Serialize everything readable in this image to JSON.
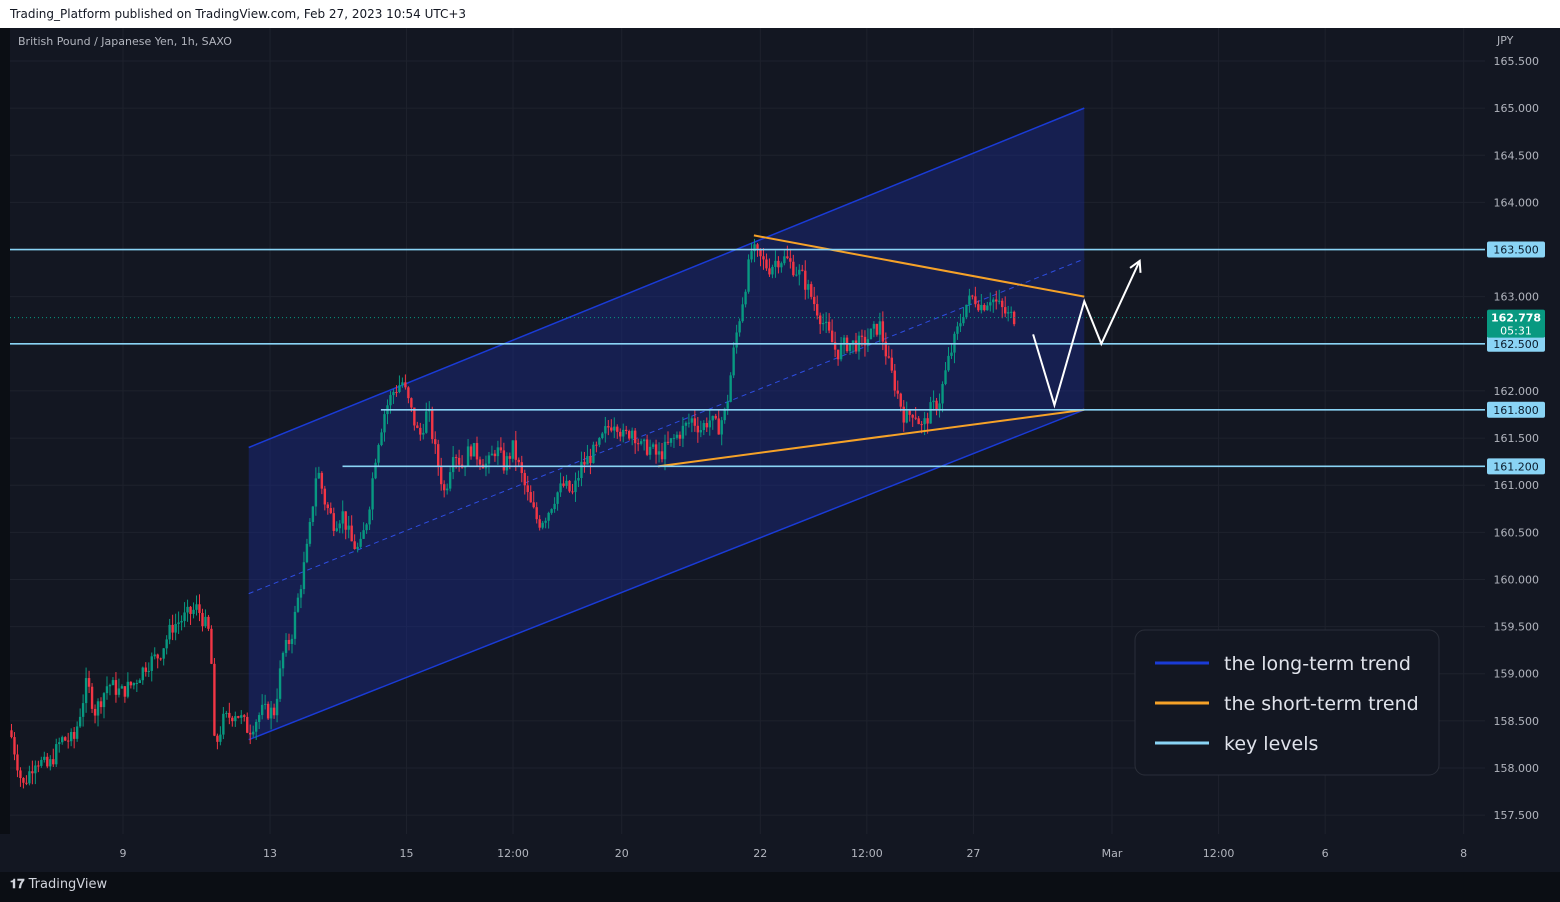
{
  "header": {
    "text": "Trading_Platform published on TradingView.com, Feb 27, 2023 10:54 UTC+3"
  },
  "footer": {
    "brand": "TradingView"
  },
  "chart_data": {
    "type": "candlestick",
    "symbol_label": "British Pound / Japanese Yen, 1h, SAXO",
    "currency_label": "JPY",
    "ylim": [
      157.3,
      165.85
    ],
    "y_ticks": [
      "165.500",
      "165.000",
      "164.500",
      "164.000",
      "163.000",
      "162.000",
      "161.500",
      "161.000",
      "160.500",
      "160.000",
      "159.500",
      "159.000",
      "158.500",
      "158.000",
      "157.500"
    ],
    "x_ticks": [
      {
        "label": "9",
        "t": 26.5
      },
      {
        "label": "13",
        "t": 61.0
      },
      {
        "label": "15",
        "t": 93.0
      },
      {
        "label": "12:00",
        "t": 118.0
      },
      {
        "label": "20",
        "t": 143.5
      },
      {
        "label": "22",
        "t": 176.0
      },
      {
        "label": "12:00",
        "t": 201.0
      },
      {
        "label": "27",
        "t": 226.0
      },
      {
        "label": "Mar",
        "t": 258.5
      },
      {
        "label": "12:00",
        "t": 283.5
      },
      {
        "label": "6",
        "t": 308.5
      },
      {
        "label": "8",
        "t": 341.0
      }
    ],
    "price_path": [
      [
        0,
        158.4
      ],
      [
        3,
        157.8
      ],
      [
        6,
        158.1
      ],
      [
        9,
        158.0
      ],
      [
        12,
        158.3
      ],
      [
        15,
        158.3
      ],
      [
        18,
        158.9
      ],
      [
        20,
        158.6
      ],
      [
        23,
        158.9
      ],
      [
        26,
        158.8
      ],
      [
        29,
        158.9
      ],
      [
        32,
        159.1
      ],
      [
        35,
        159.2
      ],
      [
        38,
        159.5
      ],
      [
        41,
        159.6
      ],
      [
        44,
        159.7
      ],
      [
        47,
        159.4
      ],
      [
        48,
        158.2
      ],
      [
        50,
        158.5
      ],
      [
        53,
        158.6
      ],
      [
        56,
        158.4
      ],
      [
        59,
        158.6
      ],
      [
        62,
        158.6
      ],
      [
        64,
        159.2
      ],
      [
        66,
        159.4
      ],
      [
        68,
        159.9
      ],
      [
        70,
        160.4
      ],
      [
        72,
        161.2
      ],
      [
        74,
        160.8
      ],
      [
        76,
        160.6
      ],
      [
        78,
        160.7
      ],
      [
        80,
        160.4
      ],
      [
        82,
        160.3
      ],
      [
        84,
        160.7
      ],
      [
        86,
        161.4
      ],
      [
        88,
        161.8
      ],
      [
        90,
        162.0
      ],
      [
        92,
        162.1
      ],
      [
        94,
        161.8
      ],
      [
        96,
        161.5
      ],
      [
        98,
        161.8
      ],
      [
        100,
        161.3
      ],
      [
        102,
        160.9
      ],
      [
        104,
        161.4
      ],
      [
        106,
        161.2
      ],
      [
        108,
        161.4
      ],
      [
        110,
        161.3
      ],
      [
        112,
        161.2
      ],
      [
        114,
        161.4
      ],
      [
        116,
        161.2
      ],
      [
        118,
        161.4
      ],
      [
        120,
        161.1
      ],
      [
        122,
        160.8
      ],
      [
        124,
        160.6
      ],
      [
        126,
        160.7
      ],
      [
        128,
        160.9
      ],
      [
        130,
        161.0
      ],
      [
        132,
        160.9
      ],
      [
        134,
        161.2
      ],
      [
        136,
        161.3
      ],
      [
        138,
        161.4
      ],
      [
        140,
        161.6
      ],
      [
        142,
        161.7
      ],
      [
        144,
        161.5
      ],
      [
        146,
        161.6
      ],
      [
        148,
        161.4
      ],
      [
        150,
        161.4
      ],
      [
        152,
        161.3
      ],
      [
        154,
        161.4
      ],
      [
        156,
        161.5
      ],
      [
        158,
        161.6
      ],
      [
        160,
        161.7
      ],
      [
        162,
        161.6
      ],
      [
        164,
        161.7
      ],
      [
        166,
        161.6
      ],
      [
        168,
        161.8
      ],
      [
        170,
        162.5
      ],
      [
        172,
        163.0
      ],
      [
        174,
        163.5
      ],
      [
        176,
        163.4
      ],
      [
        178,
        163.3
      ],
      [
        180,
        163.4
      ],
      [
        182,
        163.4
      ],
      [
        184,
        163.3
      ],
      [
        186,
        163.2
      ],
      [
        188,
        163.0
      ],
      [
        190,
        162.8
      ],
      [
        192,
        162.6
      ],
      [
        194,
        162.4
      ],
      [
        196,
        162.5
      ],
      [
        198,
        162.5
      ],
      [
        200,
        162.5
      ],
      [
        202,
        162.6
      ],
      [
        204,
        162.7
      ],
      [
        206,
        162.3
      ],
      [
        208,
        162.0
      ],
      [
        210,
        161.7
      ],
      [
        212,
        161.8
      ],
      [
        214,
        161.6
      ],
      [
        216,
        161.8
      ],
      [
        218,
        161.9
      ],
      [
        220,
        162.3
      ],
      [
        222,
        162.6
      ],
      [
        224,
        162.9
      ],
      [
        226,
        163.0
      ],
      [
        228,
        162.9
      ],
      [
        230,
        163.0
      ],
      [
        232,
        162.9
      ],
      [
        234,
        162.8
      ],
      [
        236,
        162.78
      ]
    ],
    "current_price": {
      "value": "162.778",
      "countdown": "05:31",
      "color": "#089981"
    },
    "key_levels": [
      {
        "value": 163.5,
        "label": "163.500",
        "t_start": 0
      },
      {
        "value": 162.5,
        "label": "162.500",
        "t_start": 0
      },
      {
        "value": 161.8,
        "label": "161.800",
        "t_start": 87
      },
      {
        "value": 161.2,
        "label": "161.200",
        "t_start": 78
      }
    ],
    "channel": {
      "t0": 56,
      "t1": 252,
      "upper_start": 161.4,
      "upper_end": 165.0,
      "lower_start": 158.3,
      "lower_end": 161.8
    },
    "short_trend_upper": [
      [
        174.5,
        163.65
      ],
      [
        252,
        163.0
      ]
    ],
    "short_trend_lower": [
      [
        152,
        161.2
      ],
      [
        252,
        161.8
      ]
    ],
    "projection": [
      [
        240,
        162.6
      ],
      [
        245,
        161.85
      ],
      [
        252,
        162.95
      ],
      [
        256,
        162.5
      ],
      [
        265,
        163.38
      ]
    ],
    "legend": [
      {
        "label": "the long-term trend",
        "color": "#1a3bd6"
      },
      {
        "label": "the short-term trend",
        "color": "#f6a228"
      },
      {
        "label": "key levels",
        "color": "#8ad4f5"
      }
    ]
  },
  "colors": {
    "up": "#089981",
    "down": "#f23645",
    "level": "#8ad4f5",
    "axis_text": "#b2b5be",
    "grid": "#1e222d",
    "channel": "#1a3bd6",
    "short": "#f6a228"
  }
}
